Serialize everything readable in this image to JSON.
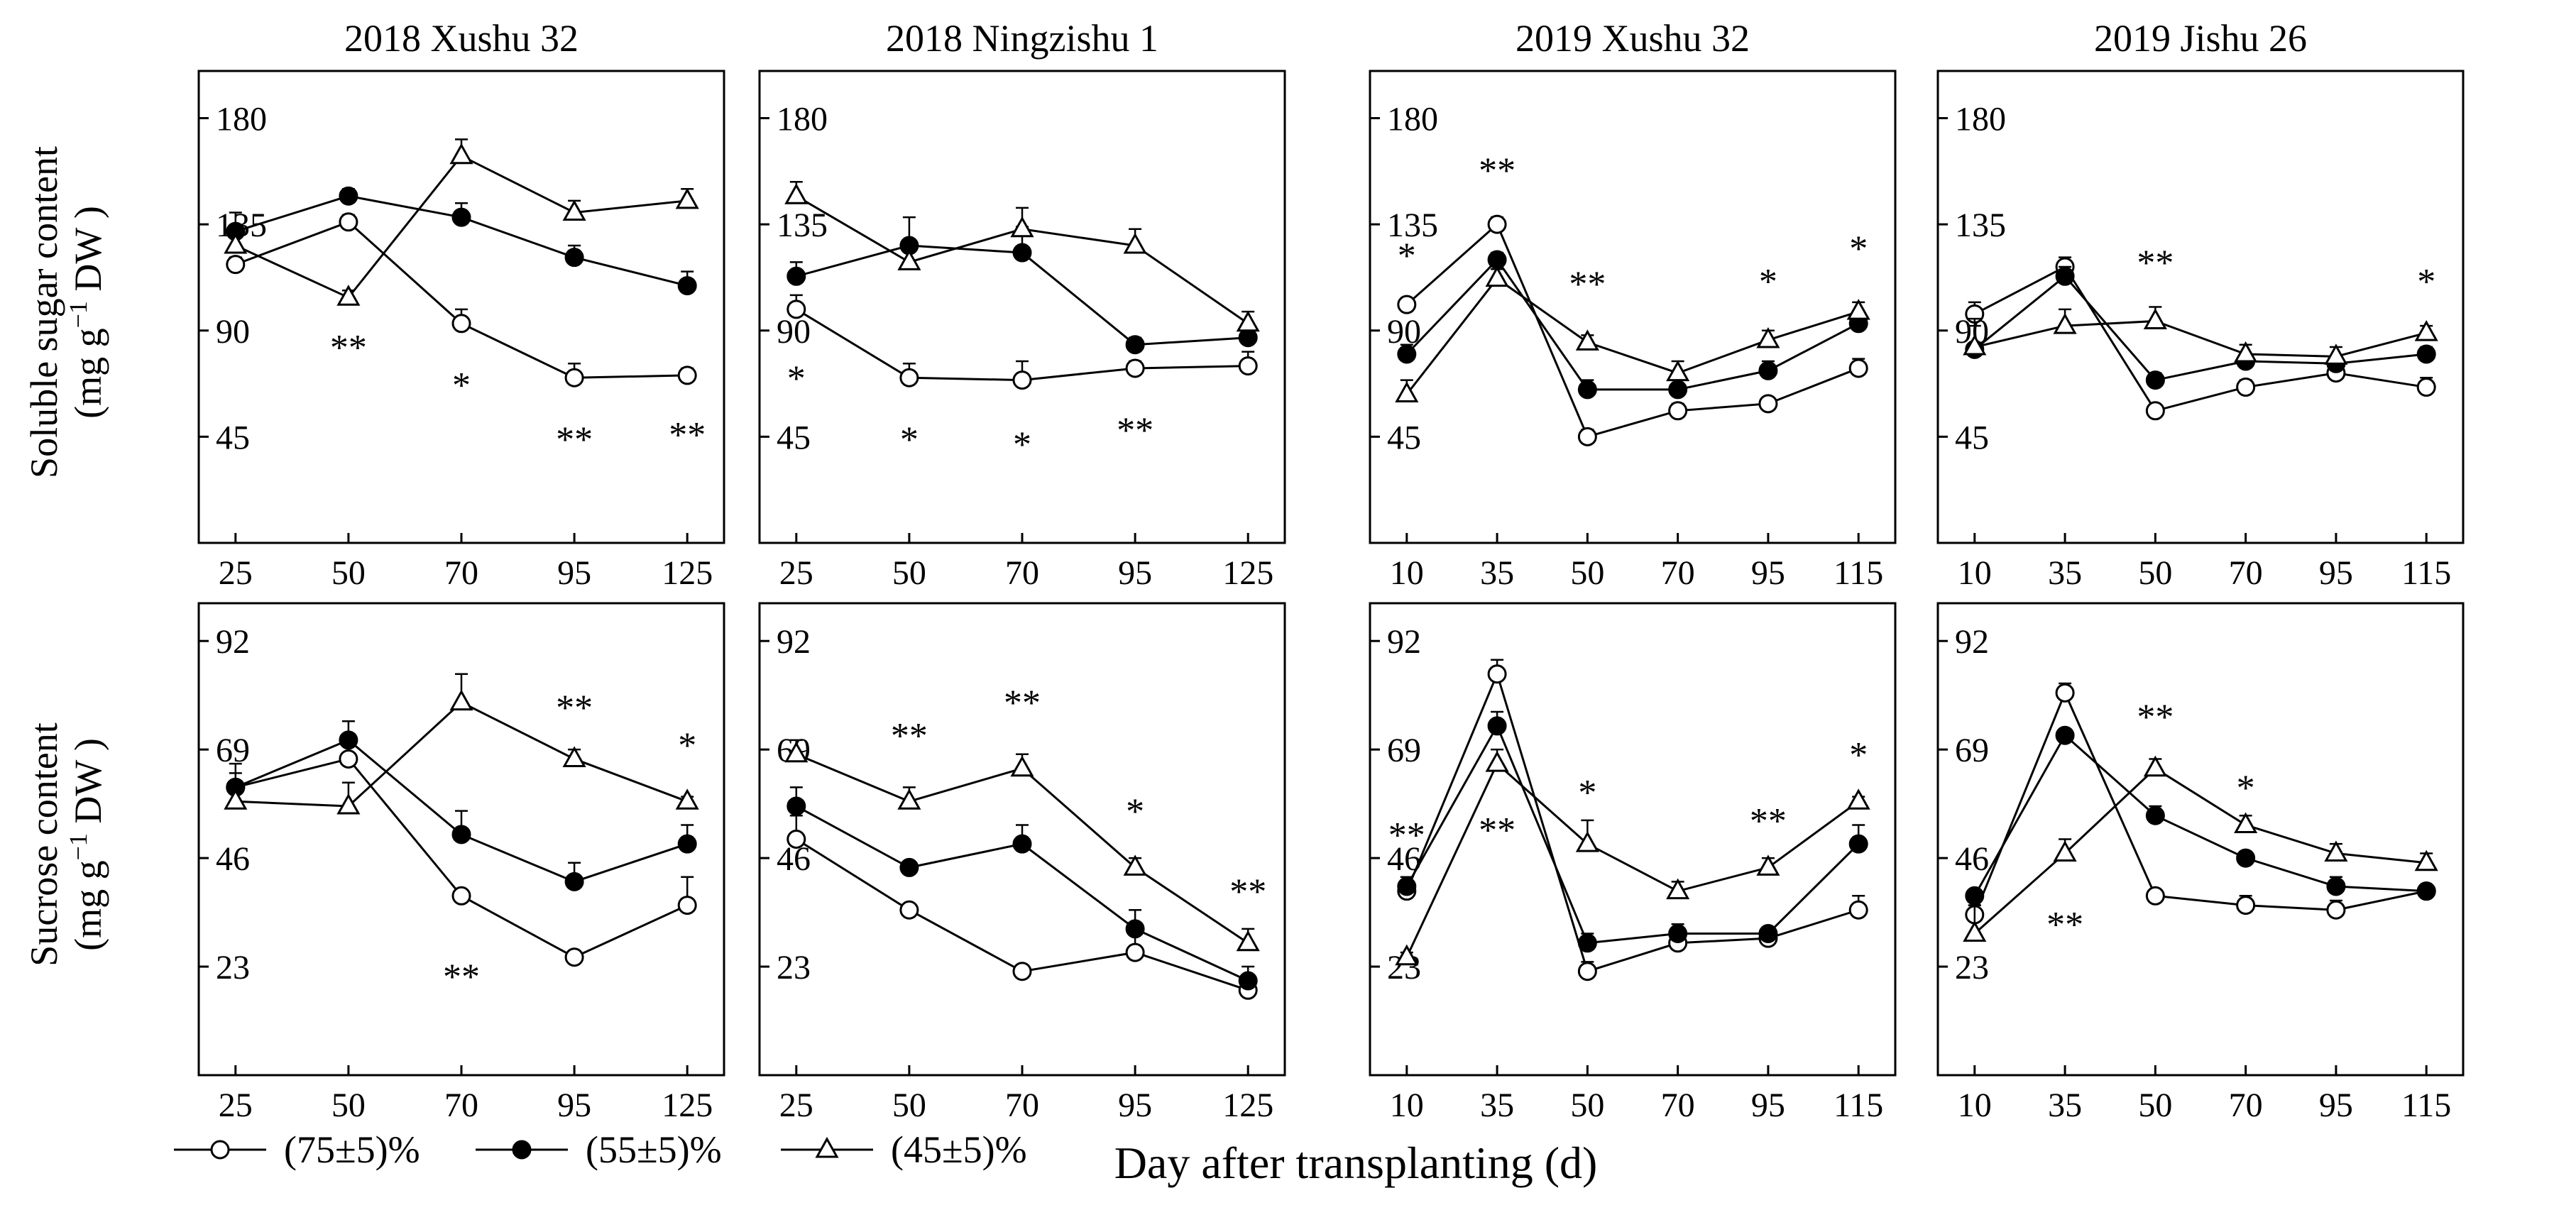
{
  "figure": {
    "xlabel": "Day after transplanting (d)",
    "ylabel_top_line1": "Soluble sugar content",
    "ylabel_top_line2_pre": "(mg g",
    "ylabel_top_line2_sup": "−1",
    "ylabel_top_line2_post": " DW )",
    "ylabel_bottom_line1": "Sucrose content",
    "ylabel_bottom_line2_pre": "(mg g",
    "ylabel_bottom_line2_sup": "−1",
    "ylabel_bottom_line2_post": " DW )",
    "legend": [
      {
        "label": "(75±5)%",
        "marker": "open-circle"
      },
      {
        "label": "(55±5)%",
        "marker": "filled-circle"
      },
      {
        "label": "(45±5)%",
        "marker": "open-triangle"
      }
    ]
  },
  "chart_data": [
    {
      "type": "line",
      "title": "2018 Xushu 32",
      "variable": "Soluble sugar content",
      "categories": [
        "25",
        "50",
        "70",
        "95",
        "125"
      ],
      "ylim": [
        0,
        200
      ],
      "yticks": [
        45,
        90,
        135,
        180
      ],
      "series": [
        {
          "name": "(75±5)%",
          "values": [
            118,
            136,
            93,
            70,
            71
          ],
          "errors": [
            3,
            3,
            6,
            6,
            3
          ]
        },
        {
          "name": "(55±5)%",
          "values": [
            132,
            147,
            138,
            121,
            109
          ],
          "errors": [
            8,
            3,
            6,
            5,
            6
          ]
        },
        {
          "name": "(45±5)%",
          "values": [
            126,
            104,
            164,
            140,
            145
          ],
          "errors": [
            6,
            3,
            7,
            5,
            5
          ]
        }
      ],
      "annotations": [
        {
          "category": "50",
          "value": 83,
          "text": "**"
        },
        {
          "category": "70",
          "value": 67,
          "text": "*"
        },
        {
          "category": "95",
          "value": 44,
          "text": "**"
        },
        {
          "category": "125",
          "value": 46,
          "text": "**"
        }
      ]
    },
    {
      "type": "line",
      "title": "2018 Ningzishu 1",
      "variable": "Soluble sugar content",
      "categories": [
        "25",
        "50",
        "70",
        "95",
        "125"
      ],
      "ylim": [
        0,
        200
      ],
      "yticks": [
        45,
        90,
        135,
        180
      ],
      "series": [
        {
          "name": "(75±5)%",
          "values": [
            99,
            70,
            69,
            74,
            75
          ],
          "errors": [
            6,
            6,
            8,
            3,
            6
          ]
        },
        {
          "name": "(55±5)%",
          "values": [
            113,
            126,
            123,
            84,
            87
          ],
          "errors": [
            6,
            12,
            11,
            3,
            3
          ]
        },
        {
          "name": "(45±5)%",
          "values": [
            147,
            119,
            133,
            126,
            93
          ],
          "errors": [
            6,
            8,
            9,
            7,
            5
          ]
        }
      ],
      "annotations": [
        {
          "category": "25",
          "value": 70,
          "text": "*"
        },
        {
          "category": "50",
          "value": 44,
          "text": "*"
        },
        {
          "category": "70",
          "value": 42,
          "text": "*"
        },
        {
          "category": "95",
          "value": 48,
          "text": "**"
        }
      ]
    },
    {
      "type": "line",
      "title": "2019 Xushu 32",
      "variable": "Soluble sugar content",
      "categories": [
        "10",
        "35",
        "50",
        "70",
        "95",
        "115"
      ],
      "ylim": [
        0,
        200
      ],
      "yticks": [
        45,
        90,
        135,
        180
      ],
      "series": [
        {
          "name": "(75±5)%",
          "values": [
            101,
            135,
            45,
            56,
            59,
            74
          ],
          "errors": [
            2,
            3,
            3,
            3,
            2,
            4
          ]
        },
        {
          "name": "(55±5)%",
          "values": [
            80,
            120,
            65,
            65,
            73,
            93
          ],
          "errors": [
            4,
            3,
            4,
            4,
            4,
            4
          ]
        },
        {
          "name": "(45±5)%",
          "values": [
            63,
            112,
            85,
            72,
            86,
            98
          ],
          "errors": [
            6,
            4,
            3,
            5,
            4,
            4
          ]
        }
      ],
      "annotations": [
        {
          "category": "10",
          "value": 122,
          "text": "*"
        },
        {
          "category": "35",
          "value": 158,
          "text": "**"
        },
        {
          "category": "50",
          "value": 110,
          "text": "**"
        },
        {
          "category": "95",
          "value": 111,
          "text": "*"
        },
        {
          "category": "115",
          "value": 125,
          "text": "*"
        }
      ]
    },
    {
      "type": "line",
      "title": "2019 Jishu 26",
      "variable": "Soluble sugar content",
      "categories": [
        "10",
        "35",
        "50",
        "70",
        "95",
        "115"
      ],
      "ylim": [
        0,
        200
      ],
      "yticks": [
        45,
        90,
        135,
        180
      ],
      "series": [
        {
          "name": "(75±5)%",
          "values": [
            97,
            117,
            56,
            66,
            72,
            66
          ],
          "errors": [
            5,
            4,
            2,
            3,
            3,
            4
          ]
        },
        {
          "name": "(55±5)%",
          "values": [
            82,
            113,
            69,
            77,
            76,
            80
          ],
          "errors": [
            10,
            4,
            3,
            3,
            3,
            3
          ]
        },
        {
          "name": "(45±5)%",
          "values": [
            83,
            92,
            94,
            80,
            79,
            89
          ],
          "errors": [
            12,
            7,
            6,
            4,
            4,
            3
          ]
        }
      ],
      "annotations": [
        {
          "category": "50",
          "value": 119,
          "text": "**"
        },
        {
          "category": "115",
          "value": 111,
          "text": "*"
        }
      ]
    },
    {
      "type": "line",
      "title": "",
      "variable": "Sucrose content",
      "categories": [
        "25",
        "50",
        "70",
        "95",
        "125"
      ],
      "ylim": [
        0,
        100
      ],
      "yticks": [
        23,
        46,
        69,
        92
      ],
      "series": [
        {
          "name": "(75±5)%",
          "values": [
            61,
            67,
            38,
            25,
            36
          ],
          "errors": [
            3,
            3,
            1,
            1,
            6
          ]
        },
        {
          "name": "(55±5)%",
          "values": [
            61,
            71,
            51,
            41,
            49
          ],
          "errors": [
            5,
            4,
            5,
            4,
            4
          ]
        },
        {
          "name": "(45±5)%",
          "values": [
            58,
            57,
            79,
            67,
            58
          ],
          "errors": [
            3,
            5,
            6,
            2,
            1
          ]
        }
      ],
      "annotations": [
        {
          "category": "70",
          "value": 21,
          "text": "**"
        },
        {
          "category": "95",
          "value": 78,
          "text": "**"
        },
        {
          "category": "125",
          "value": 70,
          "text": "*"
        }
      ]
    },
    {
      "type": "line",
      "title": "",
      "variable": "Sucrose content",
      "categories": [
        "25",
        "50",
        "70",
        "95",
        "125"
      ],
      "ylim": [
        0,
        100
      ],
      "yticks": [
        23,
        46,
        69,
        92
      ],
      "series": [
        {
          "name": "(75±5)%",
          "values": [
            50,
            35,
            22,
            26,
            18
          ],
          "errors": [
            5,
            1,
            1,
            4,
            3
          ]
        },
        {
          "name": "(55±5)%",
          "values": [
            57,
            44,
            49,
            31,
            20
          ],
          "errors": [
            4,
            1,
            4,
            4,
            3
          ]
        },
        {
          "name": "(45±5)%",
          "values": [
            68,
            58,
            65,
            44,
            28
          ],
          "errors": [
            3,
            3,
            3,
            2,
            3
          ]
        }
      ],
      "annotations": [
        {
          "category": "50",
          "value": 72,
          "text": "**"
        },
        {
          "category": "70",
          "value": 79,
          "text": "**"
        },
        {
          "category": "95",
          "value": 56,
          "text": "*"
        },
        {
          "category": "125",
          "value": 39,
          "text": "**"
        }
      ]
    },
    {
      "type": "line",
      "title": "",
      "variable": "Sucrose content",
      "categories": [
        "10",
        "35",
        "50",
        "70",
        "95",
        "115"
      ],
      "ylim": [
        0,
        100
      ],
      "yticks": [
        23,
        46,
        69,
        92
      ],
      "series": [
        {
          "name": "(75±5)%",
          "values": [
            39,
            85,
            22,
            28,
            29,
            35
          ],
          "errors": [
            1,
            3,
            2,
            2,
            1,
            3
          ]
        },
        {
          "name": "(55±5)%",
          "values": [
            40,
            74,
            28,
            30,
            30,
            49
          ],
          "errors": [
            2,
            3,
            2,
            2,
            1,
            4
          ]
        },
        {
          "name": "(45±5)%",
          "values": [
            25,
            66,
            49,
            39,
            44,
            58
          ],
          "errors": [
            1,
            3,
            5,
            2,
            2,
            1
          ]
        }
      ],
      "annotations": [
        {
          "category": "10",
          "value": 51,
          "text": "**"
        },
        {
          "category": "35",
          "value": 52,
          "text": "**"
        },
        {
          "category": "50",
          "value": 60,
          "text": "*"
        },
        {
          "category": "95",
          "value": 54,
          "text": "**"
        },
        {
          "category": "115",
          "value": 68,
          "text": "*"
        }
      ]
    },
    {
      "type": "line",
      "title": "",
      "variable": "Sucrose content",
      "categories": [
        "10",
        "35",
        "50",
        "70",
        "95",
        "115"
      ],
      "ylim": [
        0,
        100
      ],
      "yticks": [
        23,
        46,
        69,
        92
      ],
      "series": [
        {
          "name": "(75±5)%",
          "values": [
            34,
            81,
            38,
            36,
            35,
            39
          ],
          "errors": [
            2,
            2,
            1,
            2,
            2,
            1
          ]
        },
        {
          "name": "(55±5)%",
          "values": [
            38,
            72,
            55,
            46,
            40,
            39
          ],
          "errors": [
            1,
            1,
            2,
            1,
            2,
            1
          ]
        },
        {
          "name": "(45±5)%",
          "values": [
            30,
            47,
            65,
            53,
            47,
            45
          ],
          "errors": [
            6,
            3,
            2,
            2,
            2,
            2
          ]
        }
      ],
      "annotations": [
        {
          "category": "35",
          "value": 32,
          "text": "**"
        },
        {
          "category": "50",
          "value": 76,
          "text": "**"
        },
        {
          "category": "70",
          "value": 61,
          "text": "*"
        }
      ]
    }
  ]
}
